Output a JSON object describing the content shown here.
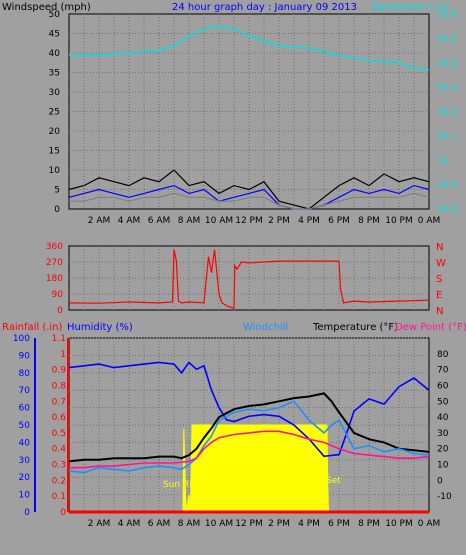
{
  "colors": {
    "background": "#a0a0a0",
    "plot_bg": "#a0a0a0",
    "grid": "#6e6e6e",
    "windspeed": "#000000",
    "gust": "#0000ff",
    "wind_avg": "#808080",
    "barometer": "#00e0e0",
    "direction": "#ff0000",
    "humidity": "#0000ff",
    "windchill": "#1e90ff",
    "temperature": "#000000",
    "dewpoint": "#ff1493",
    "rainfall": "#ff0000",
    "solar": "#ffff00"
  },
  "chart_data": [
    {
      "type": "line",
      "id": "wind-barometer",
      "title": "24 hour graph day : January 09 2013",
      "left_axis_label": "Windspeed (mph)",
      "right_axis_label": "Barometer (.in)",
      "x_tick_labels": [
        "2 AM",
        "4 AM",
        "6 AM",
        "8 AM",
        "10 AM",
        "12 PM",
        "2 PM",
        "4 PM",
        "6 PM",
        "8 PM",
        "10 PM",
        "0 AM"
      ],
      "left_ylim": [
        0,
        50
      ],
      "left_ticks": [
        "0",
        "5",
        "10",
        "15",
        "20",
        "25",
        "30",
        "35",
        "40",
        "45",
        "50"
      ],
      "right_ylim": [
        29.8,
        30.6
      ],
      "right_ticks": [
        "29.8",
        "29.9",
        "30",
        "30.1",
        "30.2",
        "30.3",
        "30.4",
        "30.5",
        "30.6"
      ],
      "grid": true,
      "series": [
        {
          "key": "barometer",
          "axis": "right",
          "x": [
            0,
            2,
            4,
            6,
            7,
            8,
            9,
            10,
            11,
            12,
            14,
            16,
            18,
            20,
            22,
            23,
            24
          ],
          "values": [
            30.43,
            30.43,
            30.44,
            30.45,
            30.47,
            30.51,
            30.54,
            30.55,
            30.54,
            30.51,
            30.47,
            30.46,
            30.43,
            30.41,
            30.4,
            30.38,
            30.37
          ]
        },
        {
          "key": "windspeed",
          "axis": "left",
          "x": [
            0,
            1,
            2,
            3,
            4,
            5,
            6,
            7,
            8,
            9,
            10,
            11,
            12,
            13,
            14,
            15,
            16,
            17,
            18,
            19,
            20,
            21,
            22,
            23,
            24
          ],
          "values": [
            5,
            6,
            8,
            7,
            6,
            8,
            7,
            10,
            6,
            7,
            4,
            6,
            5,
            7,
            2,
            1,
            0,
            3,
            6,
            8,
            6,
            9,
            7,
            8,
            7
          ]
        },
        {
          "key": "gust",
          "axis": "left",
          "x": [
            0,
            1,
            2,
            3,
            4,
            5,
            6,
            7,
            8,
            9,
            10,
            11,
            12,
            13,
            14,
            15,
            16,
            17,
            18,
            19,
            20,
            21,
            22,
            23,
            24
          ],
          "values": [
            3,
            4,
            5,
            4,
            3,
            4,
            5,
            6,
            4,
            5,
            2,
            3,
            4,
            5,
            1,
            0,
            0,
            1,
            3,
            5,
            4,
            5,
            4,
            6,
            5
          ]
        },
        {
          "key": "wind_avg",
          "axis": "left",
          "x": [
            0,
            1,
            2,
            3,
            4,
            5,
            6,
            7,
            8,
            9,
            10,
            11,
            12,
            13,
            14,
            15,
            16,
            17,
            18,
            19,
            20,
            21,
            22,
            23,
            24
          ],
          "values": [
            2,
            2,
            3,
            3,
            2,
            3,
            3,
            4,
            3,
            3,
            2,
            2,
            3,
            3,
            1,
            0,
            0,
            1,
            2,
            3,
            3,
            3,
            3,
            4,
            3
          ]
        }
      ]
    },
    {
      "type": "line",
      "id": "wind-direction",
      "left_ticks": [
        "0",
        "90",
        "180",
        "270",
        "360"
      ],
      "ylim": [
        0,
        360
      ],
      "right_labels": [
        "N",
        "W",
        "S",
        "E",
        "N"
      ],
      "grid": true,
      "series": [
        {
          "key": "direction",
          "x": [
            0,
            2,
            4,
            6,
            6.9,
            7,
            7.15,
            7.3,
            7.5,
            8,
            9,
            9.1,
            9.3,
            9.5,
            9.7,
            10,
            10.2,
            10.6,
            11,
            11.05,
            11.2,
            11.5,
            12,
            13,
            14,
            15,
            16,
            17,
            18,
            18.1,
            18.3,
            19,
            20,
            22,
            24
          ],
          "values": [
            40,
            38,
            45,
            40,
            45,
            340,
            280,
            50,
            40,
            45,
            40,
            130,
            300,
            210,
            340,
            90,
            40,
            20,
            10,
            250,
            230,
            270,
            265,
            270,
            275,
            275,
            275,
            275,
            275,
            120,
            40,
            50,
            45,
            50,
            55
          ]
        }
      ]
    },
    {
      "type": "line",
      "id": "temp-humidity",
      "labels": {
        "rainfall": "Rainfall (.in)",
        "humidity": "Humidity (%)",
        "windchill": "Windchill",
        "temperature": "Temperature (°F)",
        "dewpoint": "Dew Point (°F)",
        "sunrise": "Sun Rise",
        "sunset": "Set"
      },
      "rain_ylim": [
        0,
        1.1
      ],
      "rain_ticks": [
        "0",
        "0.1",
        "0.2",
        "0.3",
        "0.4",
        "0.5",
        "0.6",
        "0.7",
        "0.8",
        "0.9",
        "1",
        "1.1"
      ],
      "humidity_ylim": [
        0,
        100
      ],
      "humidity_ticks": [
        "0",
        "10",
        "20",
        "30",
        "40",
        "50",
        "60",
        "70",
        "80",
        "90",
        "100"
      ],
      "temp_ylim": [
        -20,
        90
      ],
      "temp_ticks": [
        "-10",
        "0",
        "10",
        "20",
        "30",
        "40",
        "50",
        "60",
        "70",
        "80"
      ],
      "sunrise_hour": 7.7,
      "sunset_hour": 17.3,
      "grid": true,
      "series": [
        {
          "key": "humidity",
          "axis": "humidity",
          "x": [
            0,
            1,
            2,
            3,
            4,
            5,
            6,
            7,
            7.5,
            8,
            8.5,
            9,
            9.5,
            10,
            10.5,
            11,
            12,
            13,
            14,
            15,
            16,
            17,
            18,
            18.5,
            19,
            20,
            21,
            22,
            23,
            24
          ],
          "values": [
            83,
            84,
            85,
            83,
            84,
            85,
            86,
            85,
            80,
            86,
            82,
            84,
            70,
            60,
            53,
            52,
            55,
            56,
            55,
            50,
            42,
            32,
            33,
            45,
            58,
            65,
            62,
            72,
            77,
            70
          ]
        },
        {
          "key": "temperature",
          "axis": "temp",
          "x": [
            0,
            1,
            2,
            3,
            4,
            5,
            6,
            7,
            7.5,
            8,
            8.5,
            9,
            9.5,
            10,
            11,
            12,
            13,
            14,
            15,
            16,
            17,
            17.5,
            18,
            19,
            20,
            21,
            22,
            23,
            24
          ],
          "values": [
            12,
            13,
            13,
            14,
            14,
            14,
            15,
            15,
            14,
            16,
            20,
            27,
            33,
            40,
            45,
            47,
            48,
            50,
            52,
            53,
            55,
            50,
            43,
            30,
            26,
            24,
            20,
            19,
            18
          ]
        },
        {
          "key": "windchill",
          "axis": "temp",
          "x": [
            0,
            1,
            2,
            3,
            4,
            5,
            6,
            7,
            7.5,
            8,
            8.5,
            9,
            9.5,
            10,
            11,
            12,
            13,
            14,
            15,
            16,
            17,
            17.5,
            18,
            19,
            20,
            21,
            22,
            23,
            24
          ],
          "values": [
            6,
            5,
            8,
            7,
            6,
            8,
            9,
            8,
            7,
            10,
            14,
            22,
            28,
            38,
            43,
            45,
            44,
            46,
            50,
            38,
            30,
            35,
            38,
            20,
            22,
            18,
            20,
            17,
            16
          ]
        },
        {
          "key": "dewpoint",
          "axis": "temp",
          "x": [
            0,
            1,
            2,
            3,
            4,
            5,
            6,
            7,
            8,
            8.5,
            9,
            9.5,
            10,
            11,
            12,
            13,
            14,
            15,
            16,
            17,
            18,
            19,
            20,
            21,
            22,
            23,
            24
          ],
          "values": [
            8,
            8,
            9,
            9,
            10,
            11,
            11,
            11,
            12,
            14,
            20,
            24,
            27,
            29,
            30,
            31,
            31,
            29,
            26,
            24,
            20,
            17,
            16,
            15,
            14,
            14,
            15
          ]
        },
        {
          "key": "solar",
          "axis": "humidity",
          "x": [
            0,
            7.6,
            7.65,
            7.8,
            8.0,
            8.1,
            8.2,
            17.2,
            17.25,
            17.3,
            24
          ],
          "values": [
            0,
            0,
            48,
            0,
            10,
            0,
            50,
            50,
            15,
            0,
            0
          ]
        },
        {
          "key": "rainfall",
          "axis": "rain",
          "x": [
            0,
            24
          ],
          "values": [
            0,
            0
          ]
        }
      ]
    }
  ]
}
